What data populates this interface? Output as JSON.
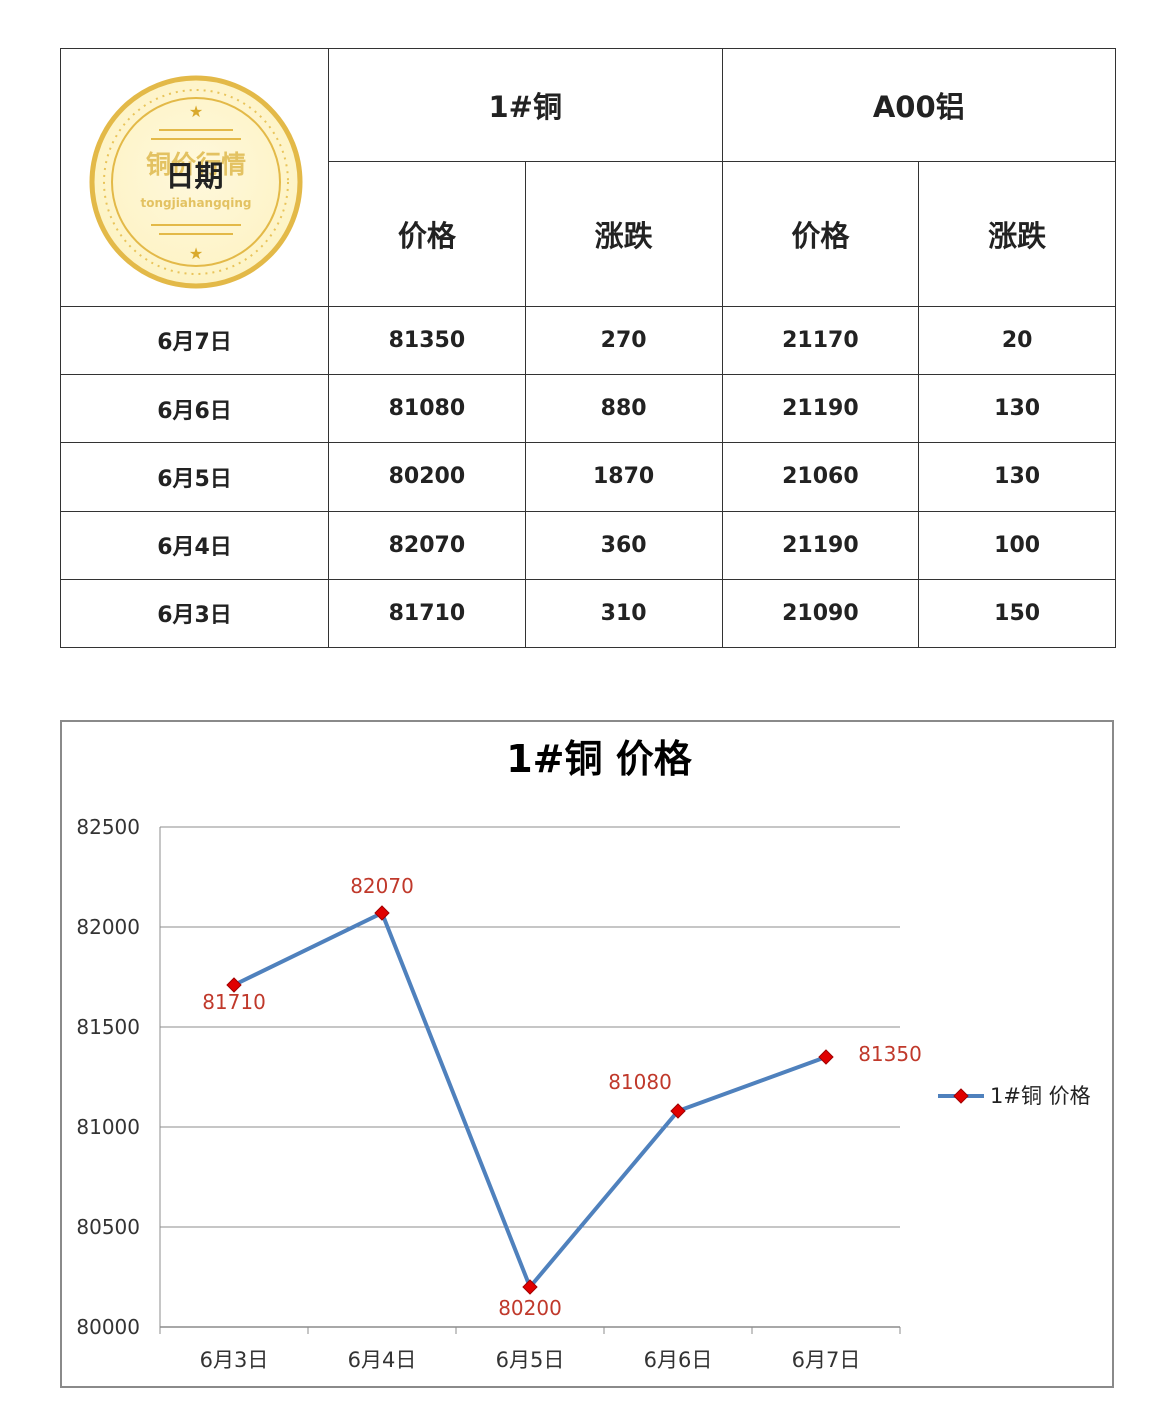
{
  "table": {
    "date_header": "日期",
    "seal_text": "铜价行情",
    "seal_subtext": "tongjiahangqing",
    "groups": [
      {
        "name": "1#铜",
        "price_label": "价格",
        "change_label": "涨跌"
      },
      {
        "name": "A00铝",
        "price_label": "价格",
        "change_label": "涨跌"
      }
    ],
    "rows": [
      {
        "date": "6月7日",
        "cu_price": "81350",
        "cu_change": "270",
        "cu_dir": "up",
        "al_price": "21170",
        "al_change": "20",
        "al_dir": "down"
      },
      {
        "date": "6月6日",
        "cu_price": "81080",
        "cu_change": "880",
        "cu_dir": "up",
        "al_price": "21190",
        "al_change": "130",
        "al_dir": "up"
      },
      {
        "date": "6月5日",
        "cu_price": "80200",
        "cu_change": "1870",
        "cu_dir": "down",
        "al_price": "21060",
        "al_change": "130",
        "al_dir": "down"
      },
      {
        "date": "6月4日",
        "cu_price": "82070",
        "cu_change": "360",
        "cu_dir": "up",
        "al_price": "21190",
        "al_change": "100",
        "al_dir": "up"
      },
      {
        "date": "6月3日",
        "cu_price": "81710",
        "cu_change": "310",
        "cu_dir": "down",
        "al_price": "21090",
        "al_change": "150",
        "al_dir": "down"
      }
    ],
    "colors": {
      "up": "#b0185a",
      "down": "#4d8b12"
    }
  },
  "chart_data": {
    "type": "line",
    "title": "1#铜 价格",
    "categories": [
      "6月3日",
      "6月4日",
      "6月5日",
      "6月6日",
      "6月7日"
    ],
    "series": [
      {
        "name": "1#铜 价格",
        "values": [
          81710,
          82070,
          80200,
          81080,
          81350
        ],
        "color": "#4f81bd",
        "marker_color": "#e00000"
      }
    ],
    "data_labels": [
      "81710",
      "82070",
      "80200",
      "81080",
      "81350"
    ],
    "ylim": [
      80000,
      82500
    ],
    "yticks": [
      80000,
      80500,
      81000,
      81500,
      82000,
      82500
    ],
    "grid": true,
    "legend": "right",
    "label_color": "#c0392b"
  }
}
